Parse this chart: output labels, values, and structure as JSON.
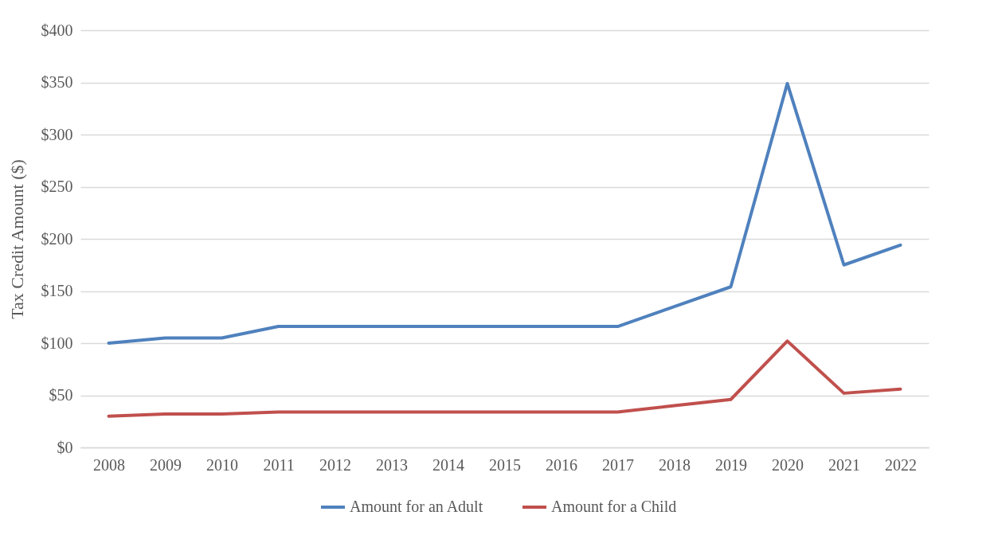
{
  "chart_data": {
    "type": "line",
    "ylabel": "Tax Credit Amount ($)",
    "categories": [
      "2008",
      "2009",
      "2010",
      "2011",
      "2012",
      "2013",
      "2014",
      "2015",
      "2016",
      "2017",
      "2018",
      "2019",
      "2020",
      "2021",
      "2022"
    ],
    "series": [
      {
        "name": "Amount for an Adult",
        "color": "#4f81bd",
        "values": [
          100,
          105,
          105,
          116,
          116,
          116,
          116,
          116,
          116,
          116,
          135,
          154,
          349,
          175,
          194
        ]
      },
      {
        "name": "Amount for a Child",
        "color": "#c0504d",
        "values": [
          30,
          32,
          32,
          34,
          34,
          34,
          34,
          34,
          34,
          34,
          40,
          46,
          102,
          52,
          56
        ]
      }
    ],
    "ylim": [
      0,
      400
    ],
    "yticks": [
      {
        "value": 0,
        "label": "$0"
      },
      {
        "value": 50,
        "label": "$50"
      },
      {
        "value": 100,
        "label": "$100"
      },
      {
        "value": 150,
        "label": "$150"
      },
      {
        "value": 200,
        "label": "$200"
      },
      {
        "value": 250,
        "label": "$250"
      },
      {
        "value": 300,
        "label": "$300"
      },
      {
        "value": 350,
        "label": "$350"
      },
      {
        "value": 400,
        "label": "$400"
      }
    ],
    "grid": "y",
    "legend": "bottom",
    "marker": "none",
    "line_style": "solid"
  }
}
